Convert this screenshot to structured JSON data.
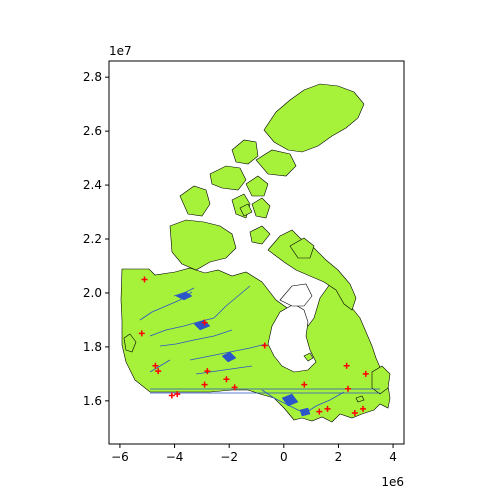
{
  "chart_data": {
    "type": "map",
    "title": "",
    "xlabel": "",
    "ylabel": "",
    "x_offset_label": "1e6",
    "y_offset_label": "1e7",
    "xlim": [
      -6.4,
      4.4
    ],
    "ylim": [
      14.4,
      28.6
    ],
    "x_ticks": [
      {
        "value": -6,
        "label": "−6"
      },
      {
        "value": -4,
        "label": "−4"
      },
      {
        "value": -2,
        "label": "−2"
      },
      {
        "value": 0,
        "label": "0"
      },
      {
        "value": 2,
        "label": "2"
      },
      {
        "value": 4,
        "label": "4"
      }
    ],
    "y_ticks": [
      {
        "value": 16,
        "label": "1.6"
      },
      {
        "value": 18,
        "label": "1.8"
      },
      {
        "value": 20,
        "label": "2.0"
      },
      {
        "value": 22,
        "label": "2.2"
      },
      {
        "value": 24,
        "label": "2.4"
      },
      {
        "value": 26,
        "label": "2.6"
      },
      {
        "value": 28,
        "label": "2.8"
      }
    ],
    "colors": {
      "land": "#a6f13a",
      "land_edge": "#000000",
      "rivers": "#2b55c8",
      "markers": "#ff0000"
    },
    "marker_symbol": "+",
    "points": [
      {
        "x": -5.1,
        "y": 20.5
      },
      {
        "x": -5.2,
        "y": 18.5
      },
      {
        "x": -4.7,
        "y": 17.3
      },
      {
        "x": -4.6,
        "y": 17.1
      },
      {
        "x": -4.1,
        "y": 16.2
      },
      {
        "x": -3.9,
        "y": 16.25
      },
      {
        "x": -2.9,
        "y": 18.9
      },
      {
        "x": -2.8,
        "y": 17.1
      },
      {
        "x": -2.9,
        "y": 16.6
      },
      {
        "x": -2.1,
        "y": 16.8
      },
      {
        "x": -1.8,
        "y": 16.5
      },
      {
        "x": -0.7,
        "y": 18.05
      },
      {
        "x": 0.75,
        "y": 16.6
      },
      {
        "x": 1.3,
        "y": 15.6
      },
      {
        "x": 1.6,
        "y": 15.7
      },
      {
        "x": 2.3,
        "y": 17.3
      },
      {
        "x": 2.35,
        "y": 16.45
      },
      {
        "x": 2.6,
        "y": 15.55
      },
      {
        "x": 2.9,
        "y": 15.7
      },
      {
        "x": 3.0,
        "y": 17.0
      }
    ]
  }
}
